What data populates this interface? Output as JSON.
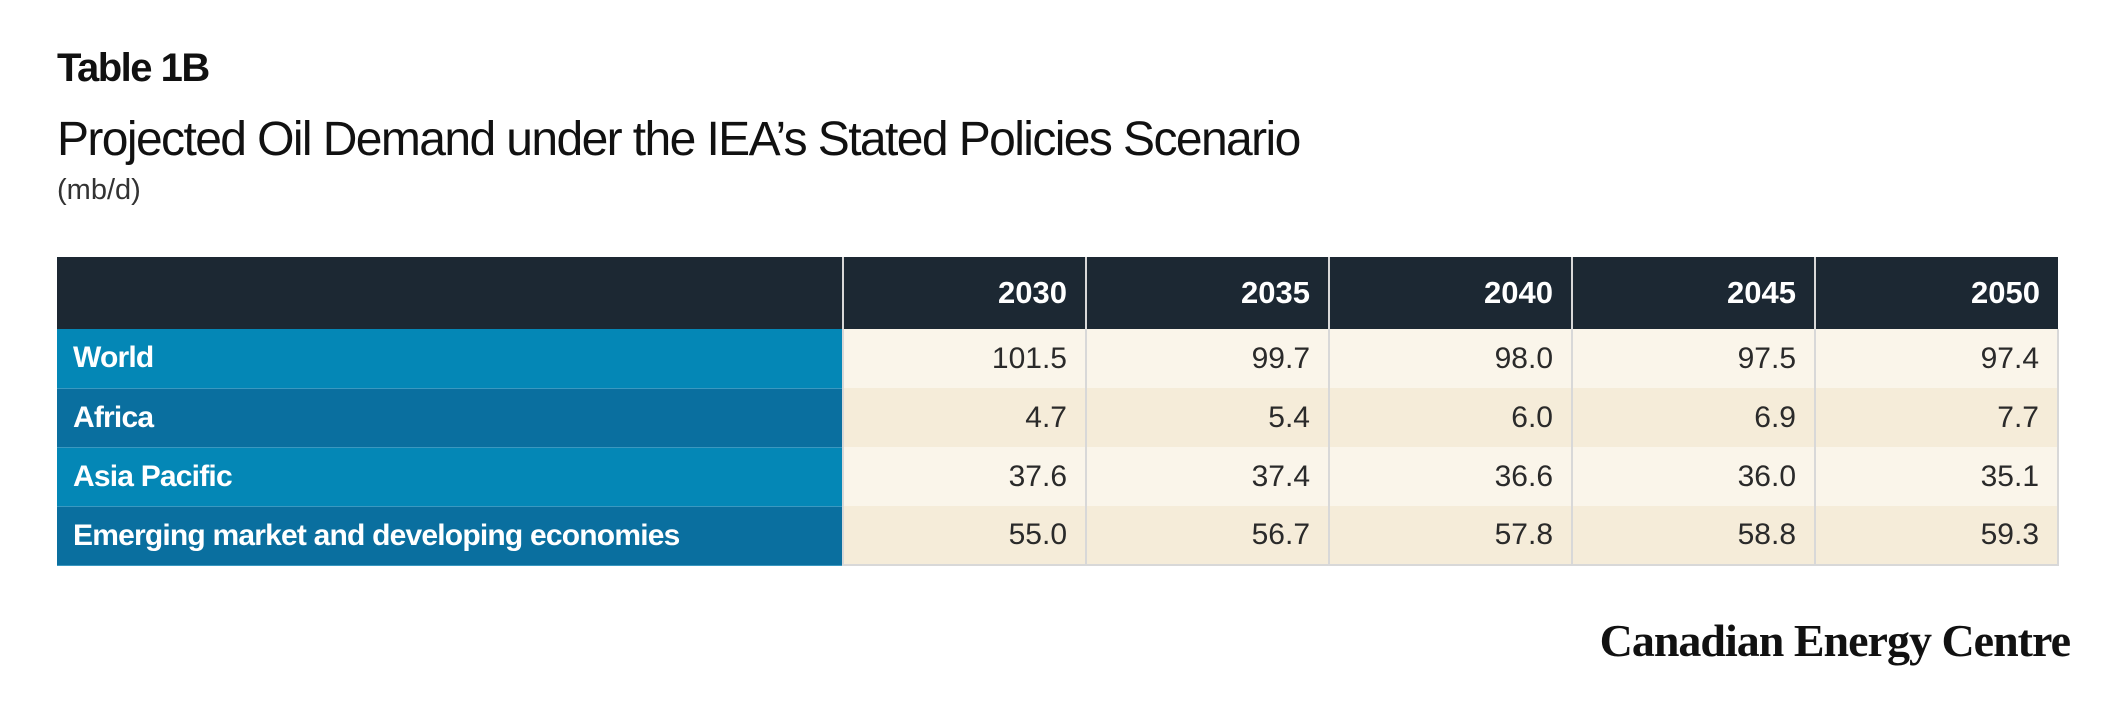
{
  "header": {
    "table_label": "Table 1B",
    "title": "Projected Oil Demand under the IEA’s Stated Policies Scenario",
    "unit": "(mb/d)"
  },
  "table": {
    "columns": [
      "2030",
      "2035",
      "2040",
      "2045",
      "2050"
    ],
    "rows": [
      {
        "label": "World",
        "values": [
          "101.5",
          "99.7",
          "98.0",
          "97.5",
          "97.4"
        ]
      },
      {
        "label": "Africa",
        "values": [
          "4.7",
          "5.4",
          "6.0",
          "6.9",
          "7.7"
        ]
      },
      {
        "label": "Asia Pacific",
        "values": [
          "37.6",
          "37.4",
          "36.6",
          "36.0",
          "35.1"
        ]
      },
      {
        "label": "Emerging market and developing economies",
        "values": [
          "55.0",
          "56.7",
          "57.8",
          "58.8",
          "59.3"
        ]
      }
    ]
  },
  "footer": {
    "brand": "Canadian Energy Centre"
  },
  "colors": {
    "header_bg": "#1c2833",
    "row_label_bg_odd": "#0487b6",
    "row_label_bg_even": "#0a6f9f",
    "cell_bg_odd": "#faf5ea",
    "cell_bg_even": "#f5ecd9"
  }
}
